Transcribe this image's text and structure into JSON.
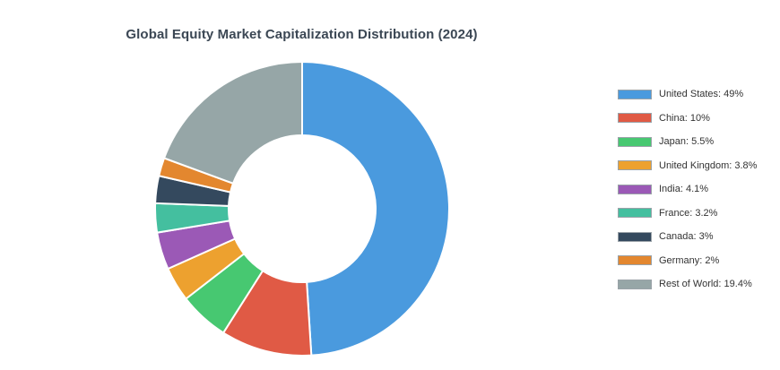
{
  "chart_data": {
    "type": "pie",
    "title": "Global Equity Market Capitalization Distribution (2024)",
    "donut": true,
    "legend_position": "right",
    "categories": [
      "United States",
      "China",
      "Japan",
      "United Kingdom",
      "India",
      "France",
      "Canada",
      "Germany",
      "Rest of World"
    ],
    "values": [
      49,
      10,
      5.5,
      3.8,
      4.1,
      3.2,
      3,
      2,
      19.4
    ],
    "unit": "%",
    "legend_labels": [
      "United States: 49%",
      "China: 10%",
      "Japan: 5.5%",
      "United Kingdom: 3.8%",
      "India: 4.1%",
      "France: 3.2%",
      "Canada: 3%",
      "Germany: 2%",
      "Rest of World: 19.4%"
    ],
    "colors": [
      "#4a9ade",
      "#e05a45",
      "#47c871",
      "#eda12f",
      "#9b59b6",
      "#44bf9f",
      "#34495e",
      "#e3872f",
      "#96a6a7"
    ]
  }
}
